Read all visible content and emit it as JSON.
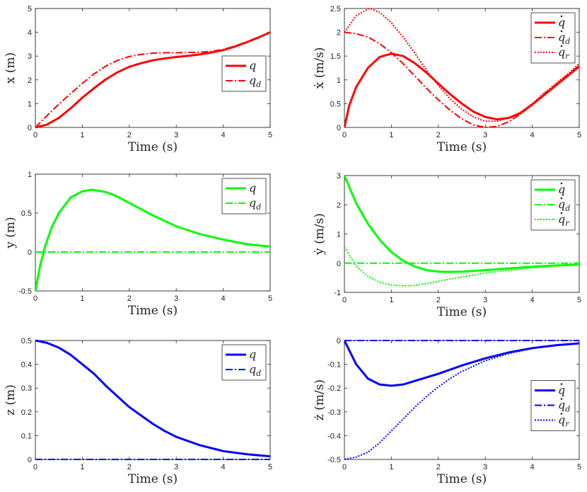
{
  "figure": {
    "description_free": true
  },
  "chart_data": [
    {
      "id": "x-pos",
      "type": "line",
      "xlabel": "Time (s)",
      "ylabel": "x (m)",
      "xlim": [
        0,
        5
      ],
      "ylim": [
        0,
        5
      ],
      "xticks": [
        0,
        1,
        2,
        3,
        4,
        5
      ],
      "yticks": [
        0,
        1,
        2,
        3,
        4,
        5
      ],
      "xtick_labels": [
        "0",
        "1",
        "2",
        "3",
        "4",
        "5"
      ],
      "ytick_labels": [
        "0",
        "1",
        "2",
        "3",
        "4",
        "5"
      ],
      "legend_position": "right-middle",
      "legend": [
        {
          "label": "q",
          "sub": "",
          "dot": false,
          "style": "solid"
        },
        {
          "label": "q",
          "sub": "d",
          "dot": false,
          "style": "dashdot"
        }
      ],
      "color": "#ff0000",
      "series": [
        {
          "name": "q",
          "style": "solid",
          "x": [
            0,
            0.25,
            0.5,
            0.75,
            1,
            1.25,
            1.5,
            1.75,
            2,
            2.25,
            2.5,
            2.75,
            3,
            3.25,
            3.5,
            3.75,
            4,
            4.25,
            4.5,
            4.75,
            5
          ],
          "y": [
            0,
            0.12,
            0.4,
            0.8,
            1.25,
            1.65,
            2.02,
            2.32,
            2.55,
            2.7,
            2.82,
            2.9,
            2.96,
            3.01,
            3.07,
            3.15,
            3.25,
            3.4,
            3.58,
            3.78,
            4.0
          ]
        },
        {
          "name": "q_d",
          "style": "dashdot",
          "x": [
            0,
            0.25,
            0.5,
            0.75,
            1,
            1.25,
            1.5,
            1.75,
            2,
            2.25,
            2.5,
            2.75,
            3,
            3.25,
            3.5,
            3.75,
            4,
            4.25,
            4.5,
            4.75,
            5
          ],
          "y": [
            0,
            0.5,
            0.98,
            1.42,
            1.85,
            2.25,
            2.58,
            2.82,
            2.98,
            3.07,
            3.12,
            3.14,
            3.14,
            3.15,
            3.16,
            3.2,
            3.28,
            3.42,
            3.6,
            3.8,
            3.98
          ]
        }
      ]
    },
    {
      "id": "x-vel",
      "type": "line",
      "xlabel": "Time (s)",
      "ylabel": "ẋ (m/s)",
      "xlim": [
        0,
        5
      ],
      "ylim": [
        0,
        2.5
      ],
      "xticks": [
        0,
        1,
        2,
        3,
        4,
        5
      ],
      "yticks": [
        0,
        0.5,
        1,
        1.5,
        2,
        2.5
      ],
      "xtick_labels": [
        "0",
        "1",
        "2",
        "3",
        "4",
        "5"
      ],
      "ytick_labels": [
        "0",
        "0.5",
        "1",
        "1.5",
        "2",
        "2.5"
      ],
      "legend_position": "top-right",
      "legend": [
        {
          "label": "q",
          "sub": "",
          "dot": true,
          "style": "solid"
        },
        {
          "label": "q",
          "sub": "d",
          "dot": true,
          "style": "dashdot"
        },
        {
          "label": "q",
          "sub": "r",
          "dot": true,
          "style": "dotted"
        }
      ],
      "color": "#ff0000",
      "series": [
        {
          "name": "q_dot",
          "style": "solid",
          "x": [
            0,
            0.1,
            0.25,
            0.5,
            0.75,
            1,
            1.25,
            1.5,
            1.75,
            2,
            2.25,
            2.5,
            2.75,
            3,
            3.25,
            3.5,
            3.75,
            4,
            4.25,
            4.5,
            4.75,
            5
          ],
          "y": [
            0,
            0.45,
            0.85,
            1.25,
            1.48,
            1.55,
            1.5,
            1.35,
            1.15,
            0.92,
            0.7,
            0.5,
            0.33,
            0.22,
            0.17,
            0.2,
            0.3,
            0.48,
            0.68,
            0.88,
            1.08,
            1.28
          ]
        },
        {
          "name": "q_dot_d",
          "style": "dashdot",
          "x": [
            0,
            0.25,
            0.5,
            0.75,
            1,
            1.25,
            1.5,
            1.75,
            2,
            2.25,
            2.5,
            2.75,
            3,
            3.25,
            3.5,
            3.75,
            4,
            4.25,
            4.5,
            4.75,
            5
          ],
          "y": [
            2.0,
            1.97,
            1.9,
            1.76,
            1.57,
            1.34,
            1.08,
            0.82,
            0.58,
            0.36,
            0.18,
            0.05,
            0.0,
            0.02,
            0.12,
            0.28,
            0.48,
            0.7,
            0.9,
            1.1,
            1.3
          ]
        },
        {
          "name": "q_dot_r",
          "style": "dotted",
          "x": [
            0,
            0.25,
            0.5,
            0.55,
            0.75,
            1,
            1.25,
            1.5,
            1.75,
            2,
            2.25,
            2.5,
            2.75,
            3,
            3.25,
            3.5,
            3.75,
            4,
            4.25,
            4.5,
            4.75,
            5
          ],
          "y": [
            2.0,
            2.35,
            2.49,
            2.5,
            2.42,
            2.2,
            1.9,
            1.56,
            1.2,
            0.88,
            0.6,
            0.38,
            0.22,
            0.13,
            0.13,
            0.2,
            0.32,
            0.5,
            0.72,
            0.92,
            1.12,
            1.34
          ]
        }
      ]
    },
    {
      "id": "y-pos",
      "type": "line",
      "xlabel": "Time (s)",
      "ylabel": "y (m)",
      "xlim": [
        0,
        5
      ],
      "ylim": [
        -0.5,
        1
      ],
      "xticks": [
        0,
        1,
        2,
        3,
        4,
        5
      ],
      "yticks": [
        -0.5,
        0,
        0.5,
        1
      ],
      "xtick_labels": [
        "0",
        "1",
        "2",
        "3",
        "4",
        "5"
      ],
      "ytick_labels": [
        "-0.5",
        "0",
        "0.5",
        "1"
      ],
      "legend_position": "top-right",
      "legend": [
        {
          "label": "q",
          "sub": "",
          "dot": false,
          "style": "solid"
        },
        {
          "label": "q",
          "sub": "d",
          "dot": false,
          "style": "dashdot"
        }
      ],
      "color": "#00ff00",
      "series": [
        {
          "name": "q",
          "style": "solid",
          "x": [
            0,
            0.1,
            0.2,
            0.35,
            0.5,
            0.75,
            1,
            1.2,
            1.5,
            1.75,
            2,
            2.5,
            3,
            3.5,
            4,
            4.5,
            5
          ],
          "y": [
            -0.5,
            -0.18,
            0.06,
            0.32,
            0.5,
            0.7,
            0.78,
            0.8,
            0.77,
            0.71,
            0.63,
            0.47,
            0.33,
            0.23,
            0.16,
            0.1,
            0.07
          ]
        },
        {
          "name": "q_d",
          "style": "dashdot",
          "x": [
            0,
            5
          ],
          "y": [
            0,
            0
          ]
        }
      ]
    },
    {
      "id": "y-vel",
      "type": "line",
      "xlabel": "Time (s)",
      "ylabel": "ẏ (m/s)",
      "xlim": [
        0,
        5
      ],
      "ylim": [
        -1,
        3
      ],
      "xticks": [
        0,
        1,
        2,
        3,
        4,
        5
      ],
      "yticks": [
        -1,
        0,
        1,
        2,
        3
      ],
      "xtick_labels": [
        "0",
        "1",
        "2",
        "3",
        "4",
        "5"
      ],
      "ytick_labels": [
        "-1",
        "0",
        "1",
        "2",
        "3"
      ],
      "legend_position": "top-right",
      "legend": [
        {
          "label": "q",
          "sub": "",
          "dot": true,
          "style": "solid"
        },
        {
          "label": "q",
          "sub": "d",
          "dot": true,
          "style": "dashdot"
        },
        {
          "label": "q",
          "sub": "r",
          "dot": true,
          "style": "dotted"
        }
      ],
      "color": "#00ff00",
      "series": [
        {
          "name": "q_dot",
          "style": "solid",
          "x": [
            0,
            0.25,
            0.5,
            0.75,
            1,
            1.25,
            1.5,
            1.75,
            2,
            2.25,
            2.5,
            3,
            3.5,
            4,
            4.5,
            5
          ],
          "y": [
            3.0,
            2.05,
            1.35,
            0.8,
            0.38,
            0.08,
            -0.12,
            -0.24,
            -0.29,
            -0.3,
            -0.29,
            -0.24,
            -0.18,
            -0.12,
            -0.08,
            -0.05
          ]
        },
        {
          "name": "q_dot_d",
          "style": "dashdot",
          "x": [
            0,
            5
          ],
          "y": [
            0,
            0
          ]
        },
        {
          "name": "q_dot_r",
          "style": "dotted",
          "x": [
            0,
            0.25,
            0.5,
            0.75,
            1,
            1.25,
            1.5,
            1.75,
            2,
            2.5,
            3,
            3.5,
            4,
            4.5,
            5
          ],
          "y": [
            0.55,
            -0.1,
            -0.45,
            -0.65,
            -0.75,
            -0.78,
            -0.76,
            -0.7,
            -0.62,
            -0.47,
            -0.34,
            -0.24,
            -0.16,
            -0.1,
            -0.06
          ]
        }
      ]
    },
    {
      "id": "z-pos",
      "type": "line",
      "xlabel": "Time (s)",
      "ylabel": "z (m)",
      "xlim": [
        0,
        5
      ],
      "ylim": [
        0,
        0.5
      ],
      "xticks": [
        0,
        1,
        2,
        3,
        4,
        5
      ],
      "yticks": [
        0,
        0.1,
        0.2,
        0.3,
        0.4,
        0.5
      ],
      "xtick_labels": [
        "0",
        "1",
        "2",
        "3",
        "4",
        "5"
      ],
      "ytick_labels": [
        "0",
        "0.1",
        "0.2",
        "0.3",
        "0.4",
        "0.5"
      ],
      "legend_position": "top-right",
      "legend": [
        {
          "label": "q",
          "sub": "",
          "dot": false,
          "style": "solid"
        },
        {
          "label": "q",
          "sub": "d",
          "dot": false,
          "style": "dashdot"
        }
      ],
      "color": "#0000ff",
      "series": [
        {
          "name": "q",
          "style": "solid",
          "x": [
            0,
            0.25,
            0.5,
            0.75,
            1,
            1.25,
            1.5,
            1.75,
            2,
            2.25,
            2.5,
            2.75,
            3,
            3.5,
            4,
            4.5,
            5
          ],
          "y": [
            0.5,
            0.49,
            0.47,
            0.44,
            0.4,
            0.36,
            0.31,
            0.265,
            0.22,
            0.185,
            0.15,
            0.12,
            0.095,
            0.06,
            0.035,
            0.022,
            0.013
          ]
        },
        {
          "name": "q_d",
          "style": "dashdot",
          "x": [
            0,
            5
          ],
          "y": [
            0,
            0
          ]
        }
      ]
    },
    {
      "id": "z-vel",
      "type": "line",
      "xlabel": "Time (s)",
      "ylabel": "ż (m/s)",
      "xlim": [
        0,
        5
      ],
      "ylim": [
        -0.5,
        0
      ],
      "xticks": [
        0,
        1,
        2,
        3,
        4,
        5
      ],
      "yticks": [
        -0.5,
        -0.4,
        -0.3,
        -0.2,
        -0.1,
        0
      ],
      "xtick_labels": [
        "0",
        "1",
        "2",
        "3",
        "4",
        "5"
      ],
      "ytick_labels": [
        "-0.5",
        "-0.4",
        "-0.3",
        "-0.2",
        "-0.1",
        "0"
      ],
      "legend_position": "right-middle",
      "legend": [
        {
          "label": "q",
          "sub": "",
          "dot": true,
          "style": "solid"
        },
        {
          "label": "q",
          "sub": "d",
          "dot": true,
          "style": "dashdot"
        },
        {
          "label": "q",
          "sub": "r",
          "dot": true,
          "style": "dotted"
        }
      ],
      "color": "#0000ff",
      "series": [
        {
          "name": "q_dot",
          "style": "solid",
          "x": [
            0,
            0.1,
            0.25,
            0.5,
            0.75,
            1,
            1.25,
            1.5,
            1.75,
            2,
            2.5,
            3,
            3.5,
            4,
            4.5,
            5
          ],
          "y": [
            0,
            -0.04,
            -0.1,
            -0.16,
            -0.185,
            -0.19,
            -0.185,
            -0.17,
            -0.155,
            -0.14,
            -0.105,
            -0.075,
            -0.05,
            -0.032,
            -0.02,
            -0.012
          ]
        },
        {
          "name": "q_dot_d",
          "style": "dashdot",
          "x": [
            0,
            5
          ],
          "y": [
            0,
            0
          ]
        },
        {
          "name": "q_dot_r",
          "style": "dotted",
          "x": [
            0,
            0.25,
            0.5,
            0.75,
            1,
            1.25,
            1.5,
            1.75,
            2,
            2.25,
            2.5,
            3,
            3.5,
            4,
            4.5,
            5
          ],
          "y": [
            -0.5,
            -0.49,
            -0.47,
            -0.43,
            -0.38,
            -0.33,
            -0.28,
            -0.235,
            -0.195,
            -0.16,
            -0.13,
            -0.085,
            -0.055,
            -0.033,
            -0.02,
            -0.012
          ]
        }
      ]
    }
  ]
}
